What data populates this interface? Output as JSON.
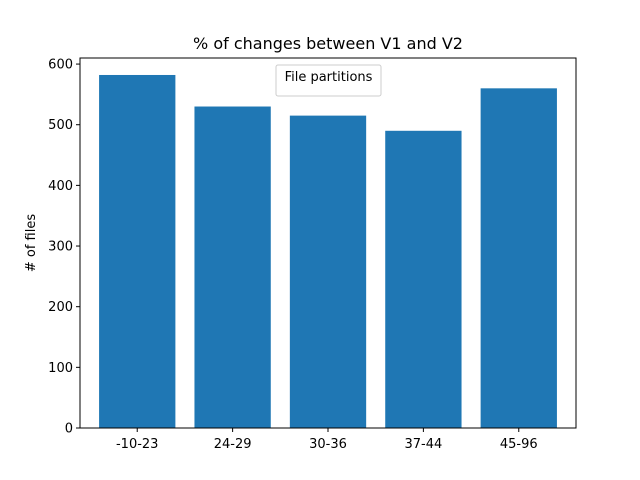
{
  "chart_data": {
    "type": "bar",
    "title": "% of changes between V1 and V2",
    "xlabel": "",
    "ylabel": "# of files",
    "categories": [
      "-10-23",
      "24-29",
      "30-36",
      "37-44",
      "45-96"
    ],
    "values": [
      582,
      530,
      515,
      490,
      560
    ],
    "ylim": [
      0,
      610
    ],
    "yticks": [
      0,
      100,
      200,
      300,
      400,
      500,
      600
    ],
    "bar_color": "#1f77b4",
    "grid": false,
    "legend": {
      "title": "File partitions",
      "placement": "upper-center",
      "entries": []
    }
  }
}
